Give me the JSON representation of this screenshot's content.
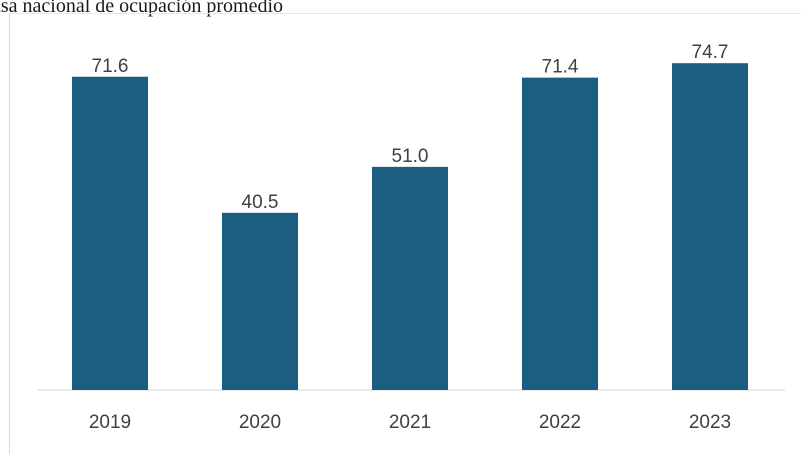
{
  "title": "asa nacional de ocupación promedio",
  "colors": {
    "bar": "#1b5e80",
    "axis": "#d0d0d0",
    "text": "#404040"
  },
  "chart_data": {
    "type": "bar",
    "title": "asa nacional de ocupación promedio",
    "categories": [
      "2019",
      "2020",
      "2021",
      "2022",
      "2023"
    ],
    "values": [
      71.6,
      40.5,
      51.0,
      71.4,
      74.7
    ],
    "value_labels": [
      "71.6",
      "40.5",
      "51.0",
      "71.4",
      "74.7"
    ],
    "xlabel": "",
    "ylabel": "",
    "ylim": [
      0,
      80
    ],
    "grid": false,
    "legend": "none"
  }
}
